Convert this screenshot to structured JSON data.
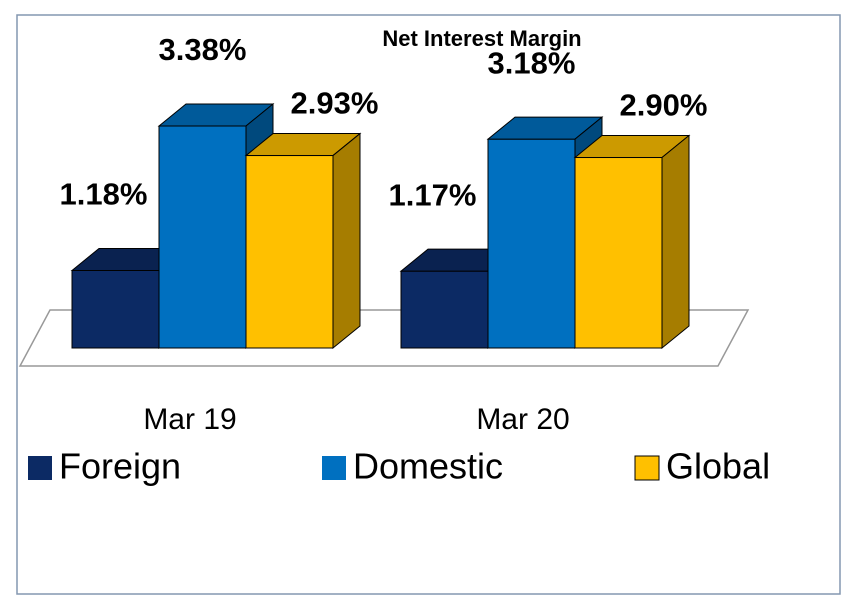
{
  "chart_data": {
    "type": "bar3d",
    "title": "Net Interest Margin",
    "categories": [
      "Mar 19",
      "Mar 20"
    ],
    "series": [
      {
        "name": "Foreign",
        "color": "#0c2a64",
        "values": [
          1.18,
          1.17
        ],
        "value_labels": [
          "1.18%",
          "1.17%"
        ]
      },
      {
        "name": "Domestic",
        "color": "#0070c0",
        "values": [
          3.38,
          3.18
        ],
        "value_labels": [
          "3.38%",
          "3.18%"
        ]
      },
      {
        "name": "Global",
        "color": "#ffc000",
        "values": [
          2.93,
          2.9
        ],
        "value_labels": [
          "2.93%",
          "2.90%"
        ]
      }
    ]
  }
}
